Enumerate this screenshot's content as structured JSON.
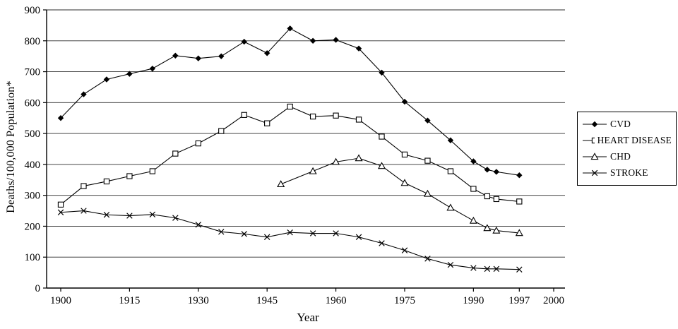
{
  "chart_data": {
    "type": "line",
    "title": "",
    "xlabel": "Year",
    "ylabel": "Deaths/100,000 Population*",
    "ylim": [
      0,
      900
    ],
    "ytick_step": 100,
    "xticks": [
      1900,
      1915,
      1930,
      1945,
      1960,
      1975,
      1990,
      1997,
      2000
    ],
    "grid": "horizontal",
    "legend_position": "right-outside",
    "line_color": "#000000",
    "background_color": "#ffffff",
    "series": [
      {
        "name": "CVD",
        "marker": "diamond-filled",
        "points": [
          [
            1900,
            550
          ],
          [
            1905,
            627
          ],
          [
            1910,
            675
          ],
          [
            1915,
            693
          ],
          [
            1920,
            710
          ],
          [
            1925,
            752
          ],
          [
            1930,
            743
          ],
          [
            1935,
            750
          ],
          [
            1940,
            797
          ],
          [
            1945,
            760
          ],
          [
            1950,
            840
          ],
          [
            1955,
            800
          ],
          [
            1960,
            803
          ],
          [
            1965,
            775
          ],
          [
            1970,
            697
          ],
          [
            1975,
            603
          ],
          [
            1980,
            542
          ],
          [
            1985,
            478
          ],
          [
            1990,
            410
          ],
          [
            1993,
            383
          ],
          [
            1995,
            376
          ],
          [
            1997,
            365
          ]
        ]
      },
      {
        "name": "HEART DISEASE",
        "marker": "square-open",
        "points": [
          [
            1900,
            270
          ],
          [
            1905,
            330
          ],
          [
            1910,
            345
          ],
          [
            1915,
            362
          ],
          [
            1920,
            378
          ],
          [
            1925,
            435
          ],
          [
            1930,
            468
          ],
          [
            1935,
            508
          ],
          [
            1940,
            560
          ],
          [
            1945,
            533
          ],
          [
            1950,
            587
          ],
          [
            1955,
            555
          ],
          [
            1960,
            558
          ],
          [
            1965,
            545
          ],
          [
            1970,
            490
          ],
          [
            1975,
            432
          ],
          [
            1980,
            412
          ],
          [
            1985,
            378
          ],
          [
            1990,
            321
          ],
          [
            1993,
            297
          ],
          [
            1995,
            288
          ],
          [
            1997,
            280
          ]
        ]
      },
      {
        "name": "CHD",
        "marker": "triangle-open",
        "points": [
          [
            1948,
            336
          ],
          [
            1955,
            378
          ],
          [
            1960,
            408
          ],
          [
            1965,
            420
          ],
          [
            1970,
            395
          ],
          [
            1975,
            340
          ],
          [
            1980,
            305
          ],
          [
            1985,
            260
          ],
          [
            1990,
            218
          ],
          [
            1993,
            194
          ],
          [
            1995,
            186
          ],
          [
            1997,
            178
          ]
        ]
      },
      {
        "name": "STROKE",
        "marker": "x",
        "points": [
          [
            1900,
            245
          ],
          [
            1905,
            250
          ],
          [
            1910,
            237
          ],
          [
            1915,
            234
          ],
          [
            1920,
            238
          ],
          [
            1925,
            227
          ],
          [
            1930,
            205
          ],
          [
            1935,
            182
          ],
          [
            1940,
            175
          ],
          [
            1945,
            165
          ],
          [
            1950,
            180
          ],
          [
            1955,
            177
          ],
          [
            1960,
            177
          ],
          [
            1965,
            165
          ],
          [
            1970,
            145
          ],
          [
            1975,
            122
          ],
          [
            1980,
            95
          ],
          [
            1985,
            75
          ],
          [
            1990,
            65
          ],
          [
            1993,
            62
          ],
          [
            1995,
            62
          ],
          [
            1997,
            60
          ]
        ]
      }
    ]
  }
}
